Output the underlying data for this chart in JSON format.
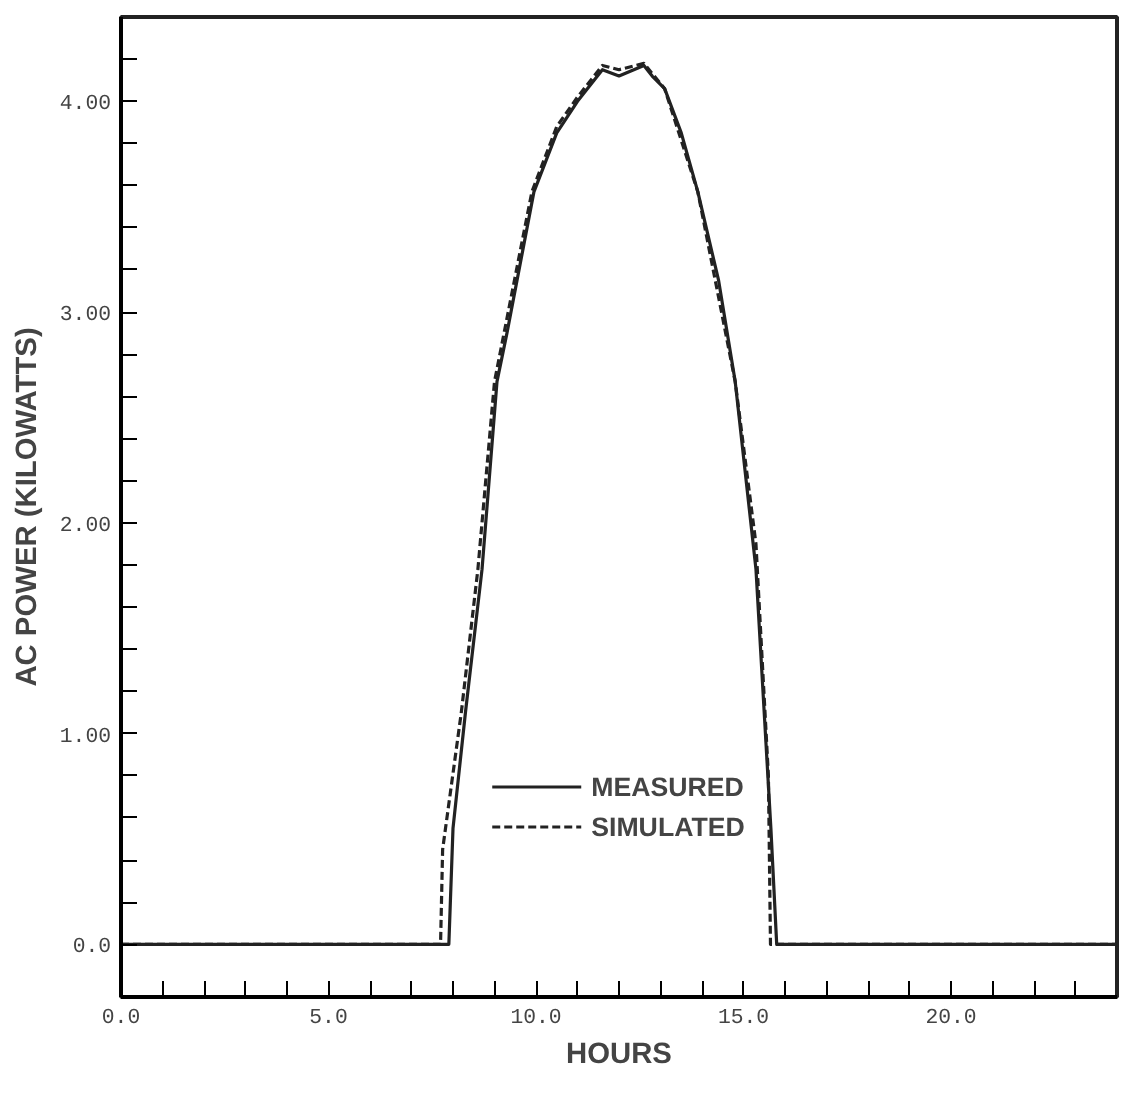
{
  "chart_data": {
    "type": "line",
    "xlabel": "HOURS",
    "ylabel": "AC POWER (KILOWATTS)",
    "xlim": [
      0,
      24
    ],
    "ylim": [
      -0.25,
      4.4
    ],
    "xticks": [
      {
        "value": 0,
        "label": "0.0"
      },
      {
        "value": 1,
        "label": null
      },
      {
        "value": 2,
        "label": null
      },
      {
        "value": 3,
        "label": null
      },
      {
        "value": 4,
        "label": null
      },
      {
        "value": 5,
        "label": "5.0"
      },
      {
        "value": 6,
        "label": null
      },
      {
        "value": 7,
        "label": null
      },
      {
        "value": 8,
        "label": null
      },
      {
        "value": 9,
        "label": null
      },
      {
        "value": 10,
        "label": "10.0"
      },
      {
        "value": 11,
        "label": null
      },
      {
        "value": 12,
        "label": null
      },
      {
        "value": 13,
        "label": null
      },
      {
        "value": 14,
        "label": null
      },
      {
        "value": 15,
        "label": "15.0"
      },
      {
        "value": 16,
        "label": null
      },
      {
        "value": 17,
        "label": null
      },
      {
        "value": 18,
        "label": null
      },
      {
        "value": 19,
        "label": null
      },
      {
        "value": 20,
        "label": "20.0"
      },
      {
        "value": 21,
        "label": null
      },
      {
        "value": 22,
        "label": null
      },
      {
        "value": 23,
        "label": null
      }
    ],
    "yticks": [
      {
        "value": 0,
        "label": "0.0"
      },
      {
        "value": 0.2,
        "label": null
      },
      {
        "value": 0.4,
        "label": null
      },
      {
        "value": 0.6,
        "label": null
      },
      {
        "value": 0.8,
        "label": null
      },
      {
        "value": 1,
        "label": "1.00"
      },
      {
        "value": 1.2,
        "label": null
      },
      {
        "value": 1.4,
        "label": null
      },
      {
        "value": 1.6,
        "label": null
      },
      {
        "value": 1.8,
        "label": null
      },
      {
        "value": 2,
        "label": "2.00"
      },
      {
        "value": 2.2,
        "label": null
      },
      {
        "value": 2.4,
        "label": null
      },
      {
        "value": 2.6,
        "label": null
      },
      {
        "value": 2.8,
        "label": null
      },
      {
        "value": 3,
        "label": "3.00"
      },
      {
        "value": 3.2,
        "label": null
      },
      {
        "value": 3.4,
        "label": null
      },
      {
        "value": 3.6,
        "label": null
      },
      {
        "value": 3.8,
        "label": null
      },
      {
        "value": 4,
        "label": "4.00"
      },
      {
        "value": 4.2,
        "label": null
      }
    ],
    "grid": false,
    "legend": "bottom",
    "marker": "none",
    "series": [
      {
        "name": "MEASURED",
        "color": "#222222",
        "line_style": "solid",
        "x": [
          0,
          7.9,
          8.0,
          8.3,
          8.7,
          9.06,
          9.3,
          9.95,
          10.5,
          11.0,
          11.4,
          11.6,
          12.0,
          12.6,
          12.8,
          13.1,
          13.5,
          13.9,
          14.4,
          14.8,
          15.3,
          15.66,
          15.8,
          24
        ],
        "values": [
          0,
          0,
          0.55,
          1.1,
          1.78,
          2.67,
          2.9,
          3.57,
          3.85,
          4.0,
          4.1,
          4.15,
          4.12,
          4.17,
          4.12,
          4.06,
          3.85,
          3.57,
          3.15,
          2.67,
          1.78,
          0.55,
          0,
          0
        ]
      },
      {
        "name": "SIMULATED",
        "color": "#222222",
        "line_style": "dashed",
        "x": [
          0,
          7.7,
          7.75,
          8.2,
          8.6,
          9.0,
          9.9,
          10.5,
          11.0,
          11.4,
          11.6,
          12.0,
          12.6,
          13.1,
          13.9,
          14.8,
          15.3,
          15.6,
          15.65,
          24
        ],
        "values": [
          0,
          0,
          0.45,
          1.1,
          1.78,
          2.67,
          3.57,
          3.88,
          4.02,
          4.12,
          4.17,
          4.15,
          4.18,
          4.06,
          3.57,
          2.67,
          1.9,
          0.8,
          0,
          0
        ]
      }
    ]
  }
}
